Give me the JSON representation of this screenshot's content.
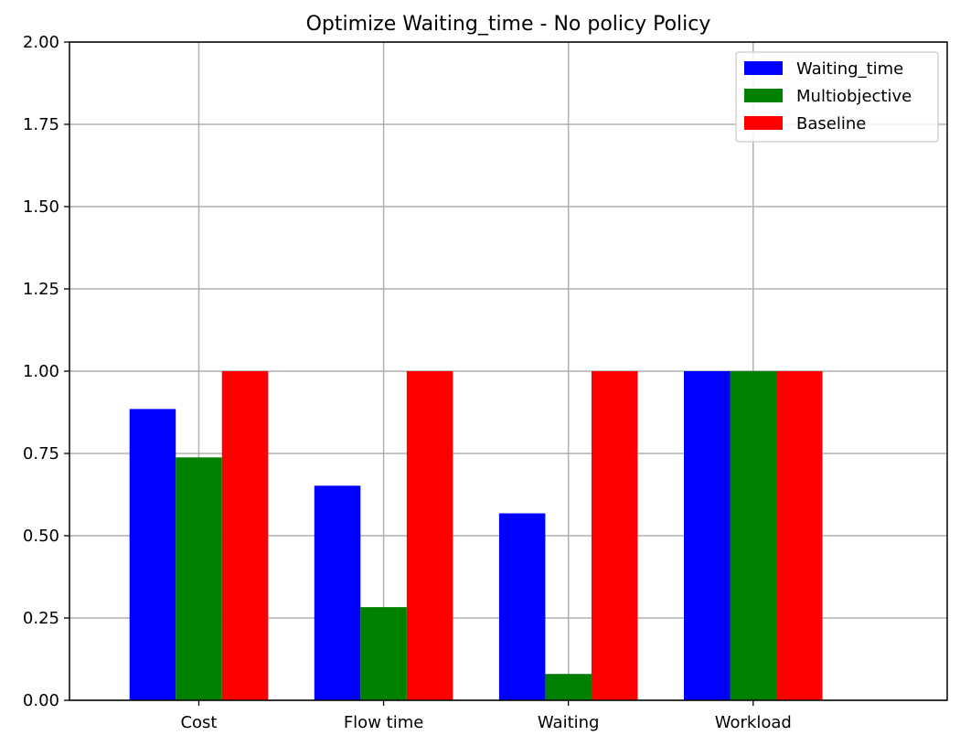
{
  "chart_data": {
    "type": "bar",
    "title": "Optimize Waiting_time - No policy Policy",
    "xlabel": "",
    "ylabel": "",
    "categories": [
      "Cost",
      "Flow time",
      "Waiting",
      "Workload"
    ],
    "series": [
      {
        "name": "Waiting_time",
        "color": "#0000ff",
        "values": [
          0.885,
          0.652,
          0.568,
          1.0
        ]
      },
      {
        "name": "Multiobjective",
        "color": "#008000",
        "values": [
          0.738,
          0.283,
          0.08,
          1.0
        ]
      },
      {
        "name": "Baseline",
        "color": "#ff0000",
        "values": [
          1.0,
          1.0,
          1.0,
          1.0
        ]
      }
    ],
    "ylim": [
      0,
      2.0
    ],
    "yticks": [
      "0.00",
      "0.25",
      "0.50",
      "0.75",
      "1.00",
      "1.25",
      "1.50",
      "1.75",
      "2.00"
    ],
    "grid": true,
    "legend_position": "top-right"
  }
}
